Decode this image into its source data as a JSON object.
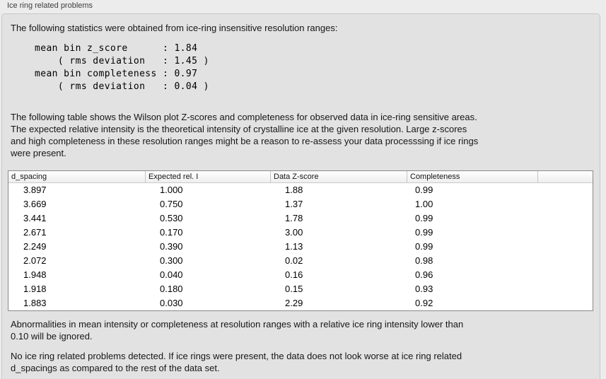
{
  "panel": {
    "title": "Ice ring related problems"
  },
  "intro": "The following statistics were obtained from ice-ring insensitive resolution ranges:",
  "stats_block": "mean bin z_score      : 1.84\n    ( rms deviation   : 1.45 )\nmean bin completeness : 0.97\n    ( rms deviation   : 0.04 )",
  "stats": {
    "mean_bin_z_score": "1.84",
    "z_score_rms_deviation": "1.45",
    "mean_bin_completeness": "0.97",
    "completeness_rms_deviation": "0.04"
  },
  "table_intro": "The following table shows the Wilson plot Z-scores and completeness for observed data in ice-ring sensitive areas.\nThe expected relative intensity is the theoretical intensity of crystalline ice at the given resolution. Large z-scores\nand high completeness in these resolution ranges might be a reason to re-assess your data processsing if ice rings\nwere present.",
  "table": {
    "columns": [
      "d_spacing",
      "Expected rel. I",
      "Data Z-score",
      "Completeness",
      ""
    ],
    "rows": [
      [
        "3.897",
        "1.000",
        "1.88",
        "0.99",
        ""
      ],
      [
        "3.669",
        "0.750",
        "1.37",
        "1.00",
        ""
      ],
      [
        "3.441",
        "0.530",
        "1.78",
        "0.99",
        ""
      ],
      [
        "2.671",
        "0.170",
        "3.00",
        "0.99",
        ""
      ],
      [
        "2.249",
        "0.390",
        "1.13",
        "0.99",
        ""
      ],
      [
        "2.072",
        "0.300",
        "0.02",
        "0.98",
        ""
      ],
      [
        "1.948",
        "0.040",
        "0.16",
        "0.96",
        ""
      ],
      [
        "1.918",
        "0.180",
        "0.15",
        "0.93",
        ""
      ],
      [
        "1.883",
        "0.030",
        "2.29",
        "0.92",
        ""
      ]
    ]
  },
  "note_ignore": "Abnormalities in mean intensity or completeness at resolution ranges with a relative ice ring intensity lower than\n0.10 will be ignored.",
  "conclusion": "No ice ring related problems detected. If ice rings were present, the data does not look worse at ice ring related\nd_spacings as compared to the rest of the data set.",
  "colors": {
    "page_background": "#ececec",
    "panel_background": "#e2e2e2",
    "panel_border": "#c6c6c6",
    "table_border": "#8a8a8a",
    "table_header_separator": "#c4c4c4",
    "table_row_background": "#ffffff",
    "text": "#161616"
  }
}
